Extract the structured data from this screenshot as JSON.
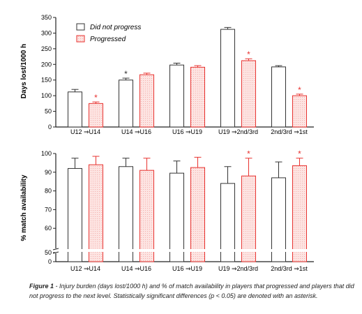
{
  "caption": {
    "label": "Figure 1",
    "text": " - Injury burden (days lost/1000 h) and % of match availability in players that progressed and players that did not progress to the next level. Statistically significant differences (p < 0.05) are denoted with an asterisk."
  },
  "colors": {
    "not_progress": "#333333",
    "progressed": "#e8322f",
    "progressed_fill": "#fde4e2"
  },
  "chart_data": [
    {
      "type": "bar",
      "ylabel": "Days lost/1000 h",
      "ylim": [
        0,
        350
      ],
      "yticks": [
        0,
        50,
        100,
        150,
        200,
        250,
        300,
        350
      ],
      "categories": [
        "U12 ⇒U14",
        "U14 ⇒U16",
        "U16 ⇒U19",
        "U19 ⇒2nd/3rd",
        "2nd/3rd ⇒1st"
      ],
      "legend_position": "top-left",
      "series": [
        {
          "name": "Did not progress",
          "values": [
            112,
            150,
            198,
            312,
            192
          ],
          "errors": [
            8,
            6,
            6,
            6,
            4
          ],
          "asterisks": [
            false,
            true,
            false,
            false,
            false
          ]
        },
        {
          "name": "Progressed",
          "values": [
            75,
            167,
            191,
            212,
            100
          ],
          "errors": [
            5,
            5,
            5,
            6,
            5
          ],
          "asterisks": [
            true,
            false,
            false,
            true,
            true
          ]
        }
      ]
    },
    {
      "type": "bar",
      "ylabel": "% match availability",
      "ylim": [
        0,
        100
      ],
      "axis_break": [
        0,
        50
      ],
      "yticks": [
        0,
        50,
        60,
        70,
        80,
        90,
        100
      ],
      "categories": [
        "U12 ⇒U14",
        "U14 ⇒U16",
        "U16 ⇒U19",
        "U19 ⇒2nd/3rd",
        "2nd/3rd ⇒1st"
      ],
      "series": [
        {
          "name": "Did not progress",
          "values": [
            92,
            93,
            89.5,
            84,
            87
          ],
          "errors": [
            5.5,
            4.5,
            6.5,
            9,
            8.5
          ],
          "asterisks": [
            false,
            false,
            false,
            false,
            false
          ]
        },
        {
          "name": "Progressed",
          "values": [
            94,
            91,
            92.5,
            88,
            93.5
          ],
          "errors": [
            4.5,
            6.5,
            5.5,
            9.5,
            4
          ],
          "asterisks": [
            false,
            false,
            false,
            true,
            true
          ]
        }
      ]
    }
  ]
}
